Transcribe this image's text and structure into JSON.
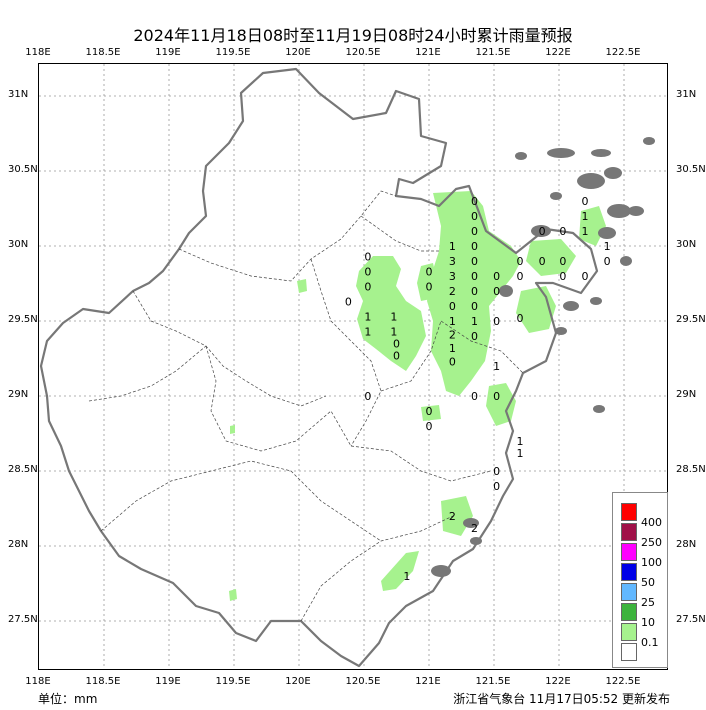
{
  "title": "2024年11月18日08时至11月19日08时24小时累计雨量预报",
  "lon_labels": [
    "118E",
    "118.5E",
    "119E",
    "119.5E",
    "120E",
    "120.5E",
    "121E",
    "121.5E",
    "122E",
    "122.5E"
  ],
  "lat_labels": [
    "31N",
    "30.5N",
    "30N",
    "29.5N",
    "29N",
    "28.5N",
    "28N",
    "27.5N"
  ],
  "unit": "单位：mm",
  "credit": "浙江省气象台 11月17日05:52 更新发布",
  "legend": {
    "items": [
      {
        "label": "400",
        "color": "#ff0000"
      },
      {
        "label": "250",
        "color": "#a01048"
      },
      {
        "label": "100",
        "color": "#ff00ff"
      },
      {
        "label": "50",
        "color": "#0000e6"
      },
      {
        "label": "25",
        "color": "#62b8ff"
      },
      {
        "label": "10",
        "color": "#3cb33c"
      },
      {
        "label": "0.1",
        "color": "#a6f28e"
      },
      {
        "label": "",
        "color": "#ffffff"
      }
    ]
  },
  "colors": {
    "rain_light": "#a6f28e",
    "coast": "#777777",
    "grid": "#999999"
  },
  "stations": [
    {
      "lon": 120.53,
      "lat": 29.93,
      "v": "0"
    },
    {
      "lon": 120.53,
      "lat": 29.83,
      "v": "0"
    },
    {
      "lon": 120.53,
      "lat": 29.73,
      "v": "0"
    },
    {
      "lon": 120.38,
      "lat": 29.63,
      "v": "0"
    },
    {
      "lon": 120.53,
      "lat": 29.53,
      "v": "1"
    },
    {
      "lon": 120.53,
      "lat": 29.43,
      "v": "1"
    },
    {
      "lon": 120.73,
      "lat": 29.53,
      "v": "1"
    },
    {
      "lon": 120.73,
      "lat": 29.43,
      "v": "1"
    },
    {
      "lon": 120.75,
      "lat": 29.35,
      "v": "0"
    },
    {
      "lon": 120.75,
      "lat": 29.27,
      "v": "0"
    },
    {
      "lon": 120.53,
      "lat": 29.0,
      "v": "0"
    },
    {
      "lon": 121.0,
      "lat": 29.83,
      "v": "0"
    },
    {
      "lon": 121.0,
      "lat": 29.73,
      "v": "0"
    },
    {
      "lon": 121.18,
      "lat": 30.0,
      "v": "1"
    },
    {
      "lon": 121.18,
      "lat": 29.9,
      "v": "3"
    },
    {
      "lon": 121.18,
      "lat": 29.8,
      "v": "3"
    },
    {
      "lon": 121.18,
      "lat": 29.7,
      "v": "2"
    },
    {
      "lon": 121.18,
      "lat": 29.6,
      "v": "0"
    },
    {
      "lon": 121.18,
      "lat": 29.5,
      "v": "1"
    },
    {
      "lon": 121.18,
      "lat": 29.41,
      "v": "2"
    },
    {
      "lon": 121.18,
      "lat": 29.32,
      "v": "1"
    },
    {
      "lon": 121.18,
      "lat": 29.23,
      "v": "0"
    },
    {
      "lon": 121.35,
      "lat": 30.3,
      "v": "0"
    },
    {
      "lon": 121.35,
      "lat": 30.2,
      "v": "0"
    },
    {
      "lon": 121.35,
      "lat": 30.1,
      "v": "0"
    },
    {
      "lon": 121.35,
      "lat": 30.0,
      "v": "0"
    },
    {
      "lon": 121.35,
      "lat": 29.9,
      "v": "0"
    },
    {
      "lon": 121.35,
      "lat": 29.8,
      "v": "0"
    },
    {
      "lon": 121.35,
      "lat": 29.7,
      "v": "0"
    },
    {
      "lon": 121.35,
      "lat": 29.6,
      "v": "0"
    },
    {
      "lon": 121.35,
      "lat": 29.5,
      "v": "1"
    },
    {
      "lon": 121.35,
      "lat": 29.4,
      "v": "0"
    },
    {
      "lon": 121.52,
      "lat": 29.8,
      "v": "0"
    },
    {
      "lon": 121.52,
      "lat": 29.7,
      "v": "0"
    },
    {
      "lon": 121.52,
      "lat": 29.5,
      "v": "0"
    },
    {
      "lon": 121.7,
      "lat": 29.9,
      "v": "0"
    },
    {
      "lon": 121.7,
      "lat": 29.8,
      "v": "0"
    },
    {
      "lon": 121.7,
      "lat": 29.52,
      "v": "0"
    },
    {
      "lon": 121.87,
      "lat": 30.1,
      "v": "0"
    },
    {
      "lon": 121.87,
      "lat": 29.9,
      "v": "0"
    },
    {
      "lon": 122.03,
      "lat": 30.1,
      "v": "0"
    },
    {
      "lon": 122.03,
      "lat": 29.9,
      "v": "0"
    },
    {
      "lon": 122.03,
      "lat": 29.8,
      "v": "0"
    },
    {
      "lon": 122.2,
      "lat": 30.3,
      "v": "0"
    },
    {
      "lon": 122.2,
      "lat": 30.2,
      "v": "1"
    },
    {
      "lon": 122.2,
      "lat": 30.1,
      "v": "1"
    },
    {
      "lon": 122.2,
      "lat": 29.8,
      "v": "0"
    },
    {
      "lon": 122.37,
      "lat": 30.0,
      "v": "1"
    },
    {
      "lon": 122.37,
      "lat": 29.9,
      "v": "0"
    },
    {
      "lon": 121.0,
      "lat": 28.9,
      "v": "0"
    },
    {
      "lon": 121.0,
      "lat": 28.8,
      "v": "0"
    },
    {
      "lon": 121.35,
      "lat": 29.0,
      "v": "0"
    },
    {
      "lon": 121.52,
      "lat": 29.0,
      "v": "0"
    },
    {
      "lon": 121.52,
      "lat": 29.2,
      "v": "1"
    },
    {
      "lon": 121.7,
      "lat": 28.7,
      "v": "1"
    },
    {
      "lon": 121.7,
      "lat": 28.62,
      "v": "1"
    },
    {
      "lon": 121.52,
      "lat": 28.5,
      "v": "0"
    },
    {
      "lon": 121.52,
      "lat": 28.4,
      "v": "0"
    },
    {
      "lon": 121.18,
      "lat": 28.2,
      "v": "2"
    },
    {
      "lon": 121.35,
      "lat": 28.12,
      "v": "2"
    },
    {
      "lon": 120.83,
      "lat": 27.8,
      "v": "1"
    }
  ]
}
